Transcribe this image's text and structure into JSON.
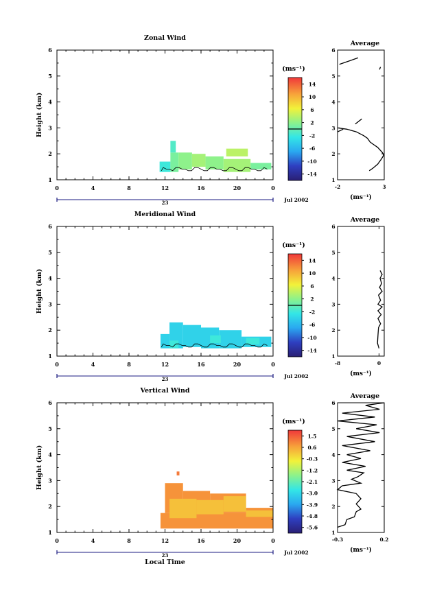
{
  "chart_data": [
    {
      "type": "heatmap",
      "title": "Zonal Wind",
      "xlabel": "",
      "ylabel": "Height (km)",
      "xlim": [
        0,
        24
      ],
      "ylim": [
        1,
        6
      ],
      "x_ticks": [
        "0",
        "4",
        "8",
        "12",
        "16",
        "20",
        "0"
      ],
      "y_ticks": [
        "1",
        "2",
        "3",
        "4",
        "5",
        "6"
      ],
      "date_day": "23",
      "date_label": "Jul 2002",
      "colorbar": {
        "unit": "(ms⁻¹)",
        "ticks": [
          "14",
          "10",
          "6",
          "2",
          "-2",
          "-6",
          "-10",
          "-14"
        ],
        "range": [
          -16,
          16
        ],
        "contour_level": 0
      },
      "cells": [
        {
          "x0": 11.4,
          "x1": 12.6,
          "y0": 1.3,
          "y1": 1.7,
          "v": -2
        },
        {
          "x0": 12.6,
          "x1": 13.5,
          "y0": 1.3,
          "y1": 2.05,
          "v": 1
        },
        {
          "x0": 13.5,
          "x1": 15.0,
          "y0": 1.4,
          "y1": 2.05,
          "v": 2
        },
        {
          "x0": 15.0,
          "x1": 16.5,
          "y0": 1.5,
          "y1": 2.0,
          "v": 3
        },
        {
          "x0": 16.5,
          "x1": 18.5,
          "y0": 1.4,
          "y1": 1.9,
          "v": 2
        },
        {
          "x0": 18.5,
          "x1": 21.5,
          "y0": 1.3,
          "y1": 1.8,
          "v": 3
        },
        {
          "x0": 21.5,
          "x1": 23.8,
          "y0": 1.4,
          "y1": 1.65,
          "v": 1
        },
        {
          "x0": 12.6,
          "x1": 13.2,
          "y0": 2.05,
          "y1": 2.5,
          "v": -1
        },
        {
          "x0": 18.8,
          "x1": 21.2,
          "y0": 1.9,
          "y1": 2.2,
          "v": 4
        }
      ],
      "average_panel": {
        "title": "Average",
        "xlabel": "(ms⁻¹)",
        "xlim": [
          -2,
          3
        ],
        "x_ticks": [
          "-2",
          "3"
        ],
        "ylim": [
          1,
          6
        ],
        "y_ticks": [
          "1",
          "2",
          "3",
          "4",
          "5",
          "6"
        ],
        "profile_segments": [
          [
            [
              -2.0,
              3.0
            ],
            [
              -1.0,
              2.95
            ],
            [
              0.0,
              2.85
            ],
            [
              0.8,
              2.7
            ],
            [
              1.2,
              2.6
            ],
            [
              1.5,
              2.45
            ],
            [
              1.9,
              2.35
            ],
            [
              2.3,
              2.25
            ],
            [
              2.8,
              2.05
            ],
            [
              2.95,
              1.95
            ],
            [
              2.7,
              1.8
            ],
            [
              2.3,
              1.6
            ],
            [
              1.8,
              1.45
            ],
            [
              1.4,
              1.35
            ]
          ],
          [
            [
              -1.4,
              2.95
            ],
            [
              -2.0,
              2.85
            ]
          ],
          [
            [
              -0.1,
              3.15
            ],
            [
              0.6,
              3.35
            ]
          ],
          [
            [
              -1.8,
              5.45
            ],
            [
              0.2,
              5.7
            ]
          ],
          [
            [
              2.5,
              5.25
            ],
            [
              2.6,
              5.35
            ]
          ]
        ]
      }
    },
    {
      "type": "heatmap",
      "title": "Meridional Wind",
      "xlabel": "",
      "ylabel": "Height (km)",
      "xlim": [
        0,
        24
      ],
      "ylim": [
        1,
        6
      ],
      "x_ticks": [
        "0",
        "4",
        "8",
        "12",
        "16",
        "20",
        "0"
      ],
      "y_ticks": [
        "1",
        "2",
        "3",
        "4",
        "5",
        "6"
      ],
      "date_day": "23",
      "date_label": "Jul 2002",
      "colorbar": {
        "unit": "(ms⁻¹)",
        "ticks": [
          "14",
          "10",
          "6",
          "2",
          "-2",
          "-6",
          "-10",
          "-14"
        ],
        "range": [
          -16,
          16
        ],
        "contour_level": 0
      },
      "cells": [
        {
          "x0": 11.5,
          "x1": 12.5,
          "y0": 1.3,
          "y1": 1.85,
          "v": -4
        },
        {
          "x0": 12.5,
          "x1": 14.0,
          "y0": 1.3,
          "y1": 2.3,
          "v": -4
        },
        {
          "x0": 14.0,
          "x1": 16.0,
          "y0": 1.35,
          "y1": 2.2,
          "v": -4
        },
        {
          "x0": 16.0,
          "x1": 18.0,
          "y0": 1.3,
          "y1": 2.1,
          "v": -4
        },
        {
          "x0": 18.0,
          "x1": 20.5,
          "y0": 1.3,
          "y1": 2.0,
          "v": -4
        },
        {
          "x0": 20.5,
          "x1": 23.8,
          "y0": 1.35,
          "y1": 1.75,
          "v": -4
        },
        {
          "x0": 12.5,
          "x1": 13.5,
          "y0": 1.3,
          "y1": 1.6,
          "v": -2
        },
        {
          "x0": 17.0,
          "x1": 18.2,
          "y0": 1.5,
          "y1": 1.8,
          "v": -2
        },
        {
          "x0": 21.0,
          "x1": 22.5,
          "y0": 1.45,
          "y1": 1.7,
          "v": -2
        }
      ],
      "average_panel": {
        "title": "Average",
        "xlabel": "(ms⁻¹)",
        "xlim": [
          -8,
          1
        ],
        "x_ticks": [
          "-8",
          "0"
        ],
        "ylim": [
          1,
          6
        ],
        "y_ticks": [
          "1",
          "2",
          "3",
          "4",
          "5",
          "6"
        ],
        "profile_segments": [
          [
            [
              0.0,
              1.3
            ],
            [
              -0.3,
              1.5
            ],
            [
              -0.2,
              1.8
            ],
            [
              -0.1,
              2.1
            ],
            [
              0.3,
              2.25
            ],
            [
              -0.2,
              2.45
            ],
            [
              0.4,
              2.6
            ],
            [
              -0.2,
              2.75
            ],
            [
              0.6,
              2.9
            ],
            [
              -0.2,
              3.0
            ],
            [
              0.3,
              3.15
            ],
            [
              -0.1,
              3.35
            ],
            [
              0.6,
              3.5
            ],
            [
              0.1,
              3.65
            ],
            [
              0.5,
              3.8
            ],
            [
              0.2,
              4.0
            ],
            [
              0.6,
              4.15
            ],
            [
              0.2,
              4.3
            ]
          ]
        ]
      }
    },
    {
      "type": "heatmap",
      "title": "Vertical Wind",
      "xlabel": "Local Time",
      "ylabel": "Height (km)",
      "xlim": [
        0,
        24
      ],
      "ylim": [
        1,
        6
      ],
      "x_ticks": [
        "0",
        "4",
        "8",
        "12",
        "16",
        "20",
        "0"
      ],
      "y_ticks": [
        "1",
        "2",
        "3",
        "4",
        "5",
        "6"
      ],
      "date_day": "23",
      "date_label": "Jul 2002",
      "colorbar": {
        "unit": "(ms⁻¹)",
        "ticks": [
          "1.5",
          "0.6",
          "-0.3",
          "-1.2",
          "-2.1",
          "-3.0",
          "-3.9",
          "-4.8",
          "-5.6"
        ],
        "range": [
          -6.0,
          2.0
        ],
        "contour_level": null
      },
      "cells": [
        {
          "x0": 11.5,
          "x1": 24.0,
          "y0": 1.15,
          "y1": 1.75,
          "v": 0.9
        },
        {
          "x0": 12.0,
          "x1": 14.0,
          "y0": 1.75,
          "y1": 2.9,
          "v": 0.9
        },
        {
          "x0": 14.0,
          "x1": 17.0,
          "y0": 1.75,
          "y1": 2.6,
          "v": 0.9
        },
        {
          "x0": 17.0,
          "x1": 21.0,
          "y0": 1.75,
          "y1": 2.5,
          "v": 0.9
        },
        {
          "x0": 21.0,
          "x1": 24.0,
          "y0": 1.75,
          "y1": 1.95,
          "v": 0.9
        },
        {
          "x0": 12.5,
          "x1": 15.5,
          "y0": 1.55,
          "y1": 2.3,
          "v": 0.3
        },
        {
          "x0": 15.5,
          "x1": 18.5,
          "y0": 1.7,
          "y1": 2.25,
          "v": 0.3
        },
        {
          "x0": 18.5,
          "x1": 21.0,
          "y0": 1.8,
          "y1": 2.4,
          "v": 0.3
        },
        {
          "x0": 21.0,
          "x1": 24.0,
          "y0": 1.6,
          "y1": 1.85,
          "v": 0.3
        },
        {
          "x0": 13.3,
          "x1": 13.6,
          "y0": 3.2,
          "y1": 3.35,
          "v": 1.2
        }
      ],
      "average_panel": {
        "title": "Average",
        "xlabel": "(ms⁻¹)",
        "xlim": [
          -0.3,
          0.2
        ],
        "x_ticks": [
          "-0.3",
          "0.2"
        ],
        "ylim": [
          1,
          6
        ],
        "y_ticks": [
          "1",
          "2",
          "3",
          "4",
          "5",
          "6"
        ],
        "profile_segments": [
          [
            [
              -0.3,
              1.2
            ],
            [
              -0.22,
              1.3
            ],
            [
              -0.2,
              1.5
            ],
            [
              -0.12,
              1.6
            ],
            [
              -0.1,
              1.8
            ],
            [
              -0.05,
              1.9
            ],
            [
              -0.1,
              2.1
            ],
            [
              -0.05,
              2.3
            ],
            [
              -0.1,
              2.5
            ],
            [
              -0.3,
              2.65
            ],
            [
              -0.25,
              2.8
            ],
            [
              -0.05,
              2.9
            ],
            [
              -0.15,
              3.05
            ],
            [
              -0.08,
              3.15
            ],
            [
              -0.02,
              3.3
            ],
            [
              -0.2,
              3.4
            ],
            [
              0.0,
              3.55
            ],
            [
              -0.25,
              3.7
            ],
            [
              -0.05,
              3.85
            ],
            [
              -0.2,
              4.0
            ],
            [
              0.05,
              4.15
            ],
            [
              -0.25,
              4.35
            ],
            [
              0.1,
              4.5
            ],
            [
              -0.2,
              4.7
            ],
            [
              0.15,
              4.85
            ],
            [
              -0.1,
              5.0
            ],
            [
              0.12,
              5.15
            ],
            [
              -0.3,
              5.3
            ],
            [
              0.1,
              5.45
            ],
            [
              -0.25,
              5.6
            ],
            [
              0.15,
              5.75
            ],
            [
              0.0,
              5.9
            ],
            [
              0.2,
              6.0
            ]
          ]
        ]
      }
    }
  ]
}
